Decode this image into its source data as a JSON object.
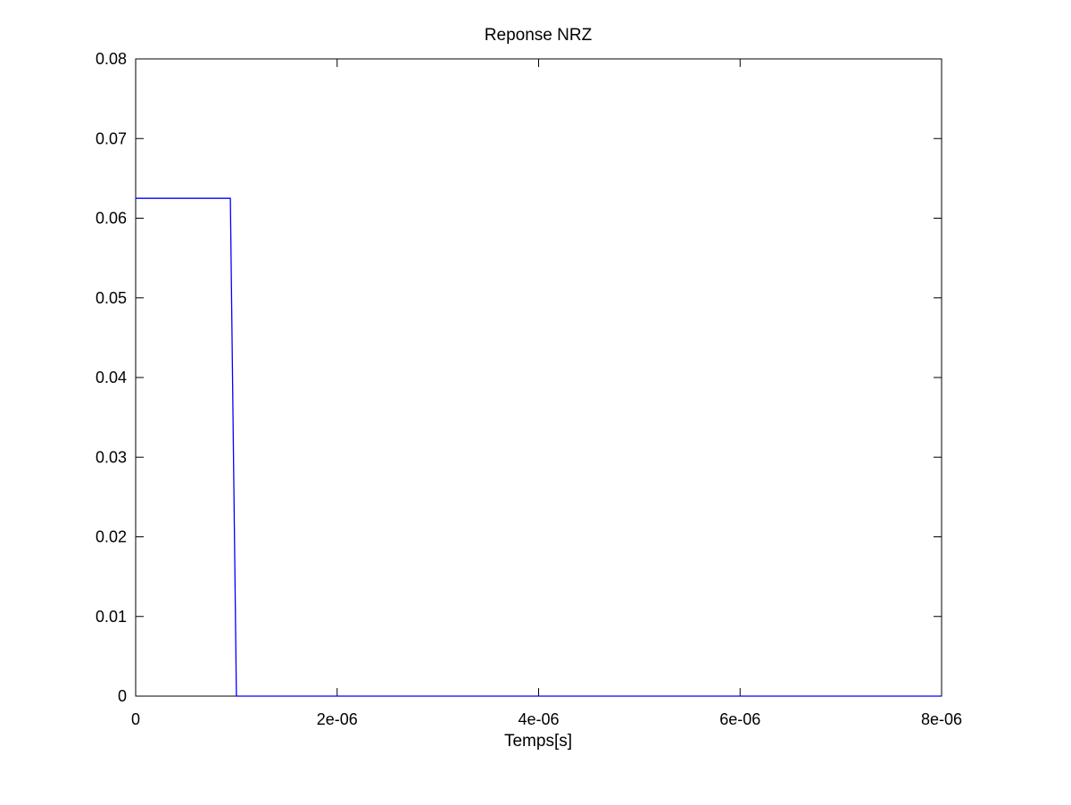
{
  "chart_data": {
    "type": "line",
    "title": "Reponse NRZ",
    "xlabel": "Temps[s]",
    "ylabel": "",
    "xlim": [
      0,
      8e-06
    ],
    "ylim": [
      0,
      0.08
    ],
    "x_ticks": [
      0,
      2e-06,
      4e-06,
      6e-06,
      8e-06
    ],
    "x_tick_labels": [
      "0",
      "2e-06",
      "4e-06",
      "6e-06",
      "8e-06"
    ],
    "y_ticks": [
      0,
      0.01,
      0.02,
      0.03,
      0.04,
      0.05,
      0.06,
      0.07,
      0.08
    ],
    "y_tick_labels": [
      "0",
      "0.01",
      "0.02",
      "0.03",
      "0.04",
      "0.05",
      "0.06",
      "0.07",
      "0.08"
    ],
    "grid": false,
    "legend": "none",
    "series": [
      {
        "color": "#0000ff",
        "x": [
          0,
          9.4e-07,
          1e-06,
          8e-06
        ],
        "y": [
          0.0625,
          0.0625,
          0,
          0
        ]
      }
    ]
  }
}
